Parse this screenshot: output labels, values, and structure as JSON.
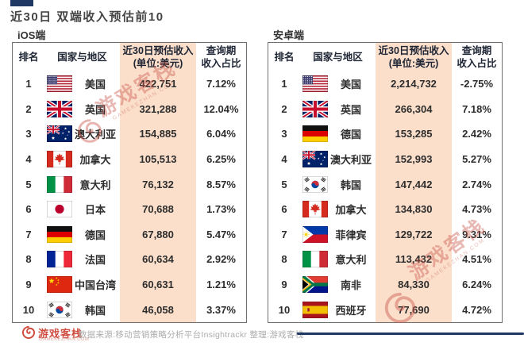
{
  "title": "近30日 双端收入预估前10",
  "headers": {
    "rank": "排名",
    "country": "国家与地区",
    "revenue_line1": "近30日预估收入",
    "revenue_line2": "(单位:美元)",
    "share_line1": "查询期",
    "share_line2": "收入占比"
  },
  "tables": [
    {
      "platform_label": "iOS端",
      "rows": [
        {
          "rank": "1",
          "flag": "us",
          "country": "美国",
          "revenue": "422,751",
          "share": "7.12%"
        },
        {
          "rank": "2",
          "flag": "gb",
          "country": "英国",
          "revenue": "321,288",
          "share": "12.04%"
        },
        {
          "rank": "3",
          "flag": "au",
          "country": "澳大利亚",
          "revenue": "154,885",
          "share": "6.04%"
        },
        {
          "rank": "4",
          "flag": "ca",
          "country": "加拿大",
          "revenue": "105,513",
          "share": "6.25%"
        },
        {
          "rank": "5",
          "flag": "it",
          "country": "意大利",
          "revenue": "76,132",
          "share": "8.57%"
        },
        {
          "rank": "6",
          "flag": "jp",
          "country": "日本",
          "revenue": "70,688",
          "share": "1.73%"
        },
        {
          "rank": "7",
          "flag": "de",
          "country": "德国",
          "revenue": "67,880",
          "share": "5.47%"
        },
        {
          "rank": "8",
          "flag": "fr",
          "country": "法国",
          "revenue": "60,634",
          "share": "2.92%"
        },
        {
          "rank": "9",
          "flag": "cn",
          "country": "中国台湾",
          "revenue": "60,631",
          "share": "1.21%"
        },
        {
          "rank": "10",
          "flag": "kr",
          "country": "韩国",
          "revenue": "46,058",
          "share": "3.37%"
        }
      ]
    },
    {
      "platform_label": "安卓端",
      "rows": [
        {
          "rank": "1",
          "flag": "us",
          "country": "美国",
          "revenue": "2,214,732",
          "share": "-2.75%"
        },
        {
          "rank": "2",
          "flag": "gb",
          "country": "英国",
          "revenue": "266,304",
          "share": "7.18%"
        },
        {
          "rank": "3",
          "flag": "de",
          "country": "德国",
          "revenue": "153,285",
          "share": "2.42%"
        },
        {
          "rank": "4",
          "flag": "au",
          "country": "澳大利亚",
          "revenue": "152,993",
          "share": "5.27%"
        },
        {
          "rank": "5",
          "flag": "kr",
          "country": "韩国",
          "revenue": "147,442",
          "share": "2.74%"
        },
        {
          "rank": "6",
          "flag": "ca",
          "country": "加拿大",
          "revenue": "134,830",
          "share": "4.73%"
        },
        {
          "rank": "7",
          "flag": "ph",
          "country": "菲律宾",
          "revenue": "129,722",
          "share": "9.31%"
        },
        {
          "rank": "8",
          "flag": "it",
          "country": "意大利",
          "revenue": "113,432",
          "share": "4.51%"
        },
        {
          "rank": "9",
          "flag": "za",
          "country": "南非",
          "revenue": "84,330",
          "share": "6.24%"
        },
        {
          "rank": "10",
          "flag": "es",
          "country": "西班牙",
          "revenue": "77,690",
          "share": "4.72%"
        }
      ]
    }
  ],
  "chart_data": [
    {
      "type": "table",
      "title": "iOS端 近30日预估收入前10",
      "columns": [
        "排名",
        "国家与地区",
        "近30日预估收入(单位:美元)",
        "查询期收入占比"
      ],
      "rows": [
        [
          1,
          "美国",
          422751,
          "7.12%"
        ],
        [
          2,
          "英国",
          321288,
          "12.04%"
        ],
        [
          3,
          "澳大利亚",
          154885,
          "6.04%"
        ],
        [
          4,
          "加拿大",
          105513,
          "6.25%"
        ],
        [
          5,
          "意大利",
          76132,
          "8.57%"
        ],
        [
          6,
          "日本",
          70688,
          "1.73%"
        ],
        [
          7,
          "德国",
          67880,
          "5.47%"
        ],
        [
          8,
          "法国",
          60634,
          "2.92%"
        ],
        [
          9,
          "中国台湾",
          60631,
          "1.21%"
        ],
        [
          10,
          "韩国",
          46058,
          "3.37%"
        ]
      ]
    },
    {
      "type": "table",
      "title": "安卓端 近30日预估收入前10",
      "columns": [
        "排名",
        "国家与地区",
        "近30日预估收入(单位:美元)",
        "查询期收入占比"
      ],
      "rows": [
        [
          1,
          "美国",
          2214732,
          "-2.75%"
        ],
        [
          2,
          "英国",
          266304,
          "7.18%"
        ],
        [
          3,
          "德国",
          153285,
          "2.42%"
        ],
        [
          4,
          "澳大利亚",
          152993,
          "5.27%"
        ],
        [
          5,
          "韩国",
          147442,
          "2.74%"
        ],
        [
          6,
          "加拿大",
          134830,
          "4.73%"
        ],
        [
          7,
          "菲律宾",
          129722,
          "9.31%"
        ],
        [
          8,
          "意大利",
          113432,
          "4.51%"
        ],
        [
          9,
          "南非",
          84330,
          "6.24%"
        ],
        [
          10,
          "西班牙",
          77690,
          "4.72%"
        ]
      ]
    }
  ],
  "watermark": {
    "text": "游戏客栈",
    "subtext": "GAMEKEZHAN.COM"
  },
  "footer": {
    "logo_text": "游戏客栈",
    "logo_subtext": "GAMEKEZHAN.COM",
    "source_text": "数据来源:移动营销策略分析平台Insightrackr  整理:游戏客栈"
  },
  "colors": {
    "accent_column_bg": "#FBDFCB",
    "navy": "#1F3864",
    "logo_red": "#CE4B3E",
    "watermark_red": "rgba(201,85,74,0.42)"
  }
}
